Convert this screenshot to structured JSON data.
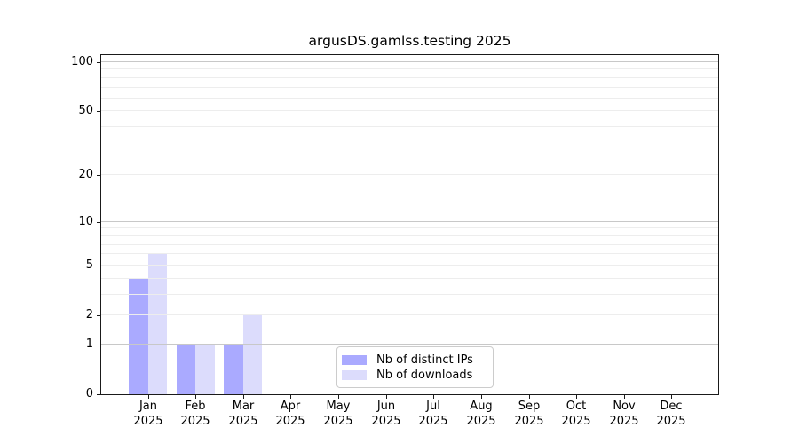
{
  "chart_data": {
    "type": "bar",
    "title": "argusDS.gamlss.testing 2025",
    "categories": [
      "Jan 2025",
      "Feb 2025",
      "Mar 2025",
      "Apr 2025",
      "May 2025",
      "Jun 2025",
      "Jul 2025",
      "Aug 2025",
      "Sep 2025",
      "Oct 2025",
      "Nov 2025",
      "Dec 2025"
    ],
    "series": [
      {
        "name": "Nb of distinct IPs",
        "color": "#aaaaff",
        "values": [
          4,
          1,
          1,
          0,
          0,
          0,
          0,
          0,
          0,
          0,
          0,
          0
        ]
      },
      {
        "name": "Nb of downloads",
        "color": "#dcdcfc",
        "values": [
          6,
          1,
          2,
          0,
          0,
          0,
          0,
          0,
          0,
          0,
          0,
          0
        ]
      }
    ],
    "yscale": "log1p",
    "ylim": [
      0,
      113
    ],
    "yticks": [
      0,
      1,
      2,
      5,
      10,
      20,
      50,
      100
    ],
    "grid": {
      "on": true,
      "major": [
        1,
        10,
        100
      ],
      "minor": [
        2,
        3,
        4,
        5,
        6,
        7,
        8,
        9,
        20,
        30,
        40,
        50,
        60,
        70,
        80,
        90
      ]
    },
    "legend_position": "lower center",
    "colors": {
      "major_grid": "#c8c8c8",
      "minor_grid": "#ededed",
      "axis": "#1a1a1a",
      "legend_border": "#cccccc"
    }
  }
}
